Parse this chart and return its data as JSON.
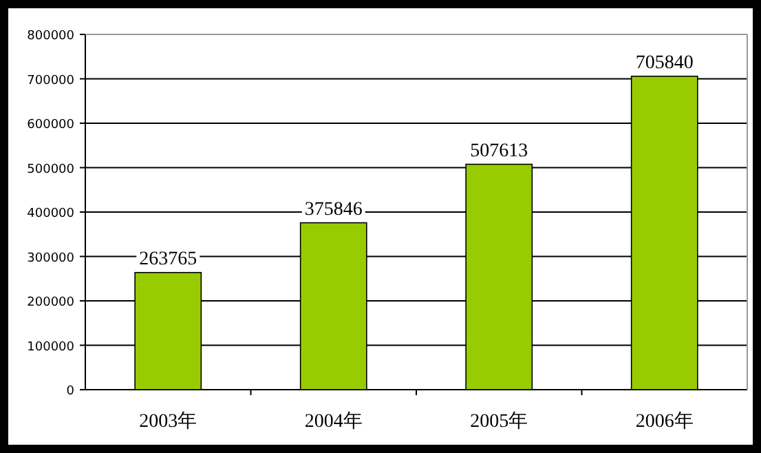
{
  "chart_data": {
    "type": "bar",
    "categories": [
      "2003年",
      "2004年",
      "2005年",
      "2006年"
    ],
    "values": [
      263765,
      375846,
      507613,
      705840
    ],
    "color": "#99cc00",
    "ylim": [
      0,
      800000
    ],
    "yticks": [
      0,
      100000,
      200000,
      300000,
      400000,
      500000,
      600000,
      700000,
      800000
    ],
    "grid": "y",
    "data_labels": true
  }
}
